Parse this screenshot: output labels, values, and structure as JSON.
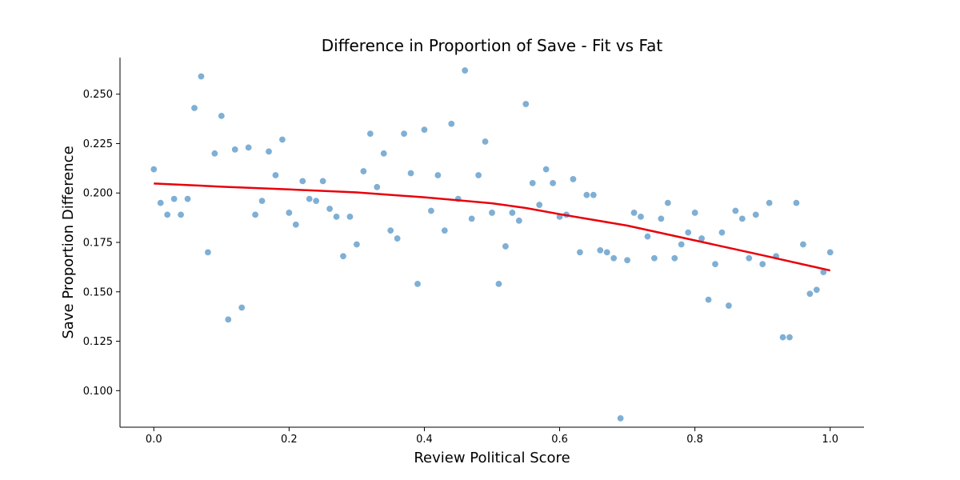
{
  "chart_data": {
    "type": "scatter",
    "title": "Difference in Proportion of Save - Fit vs Fat",
    "xlabel": "Review Political Score",
    "ylabel": "Save Proportion Difference",
    "xlim": [
      -0.05,
      1.05
    ],
    "ylim": [
      0.0815,
      0.2685
    ],
    "xticks": [
      0.0,
      0.2,
      0.4,
      0.6,
      0.8,
      1.0
    ],
    "xtick_labels": [
      "0.0",
      "0.2",
      "0.4",
      "0.6",
      "0.8",
      "1.0"
    ],
    "yticks": [
      0.1,
      0.125,
      0.15,
      0.175,
      0.2,
      0.225,
      0.25
    ],
    "ytick_labels": [
      "0.100",
      "0.125",
      "0.150",
      "0.175",
      "0.200",
      "0.225",
      "0.250"
    ],
    "grid": false,
    "spines": "left-bottom",
    "colors": {
      "points": "#7fafd4",
      "trend": "#e8000b"
    },
    "series": [
      {
        "type": "scatter",
        "x": [
          0.0,
          0.01,
          0.02,
          0.03,
          0.04,
          0.05,
          0.06,
          0.07,
          0.08,
          0.09,
          0.1,
          0.11,
          0.12,
          0.13,
          0.14,
          0.15,
          0.16,
          0.17,
          0.18,
          0.19,
          0.2,
          0.21,
          0.22,
          0.23,
          0.24,
          0.25,
          0.26,
          0.27,
          0.28,
          0.29,
          0.3,
          0.31,
          0.32,
          0.33,
          0.34,
          0.35,
          0.36,
          0.37,
          0.38,
          0.39,
          0.4,
          0.41,
          0.42,
          0.43,
          0.44,
          0.45,
          0.46,
          0.47,
          0.48,
          0.49,
          0.5,
          0.51,
          0.52,
          0.53,
          0.54,
          0.55,
          0.56,
          0.57,
          0.58,
          0.59,
          0.6,
          0.61,
          0.62,
          0.63,
          0.64,
          0.65,
          0.66,
          0.67,
          0.68,
          0.69,
          0.7,
          0.71,
          0.72,
          0.73,
          0.74,
          0.75,
          0.76,
          0.77,
          0.78,
          0.79,
          0.8,
          0.81,
          0.82,
          0.83,
          0.84,
          0.85,
          0.86,
          0.87,
          0.88,
          0.89,
          0.9,
          0.91,
          0.92,
          0.93,
          0.94,
          0.95,
          0.96,
          0.97,
          0.98,
          0.99,
          1.0
        ],
        "y": [
          0.212,
          0.195,
          0.189,
          0.197,
          0.189,
          0.197,
          0.243,
          0.259,
          0.17,
          0.22,
          0.239,
          0.136,
          0.222,
          0.142,
          0.223,
          0.189,
          0.196,
          0.221,
          0.209,
          0.227,
          0.19,
          0.184,
          0.206,
          0.197,
          0.196,
          0.206,
          0.192,
          0.188,
          0.168,
          0.188,
          0.174,
          0.211,
          0.23,
          0.203,
          0.22,
          0.181,
          0.177,
          0.23,
          0.21,
          0.154,
          0.232,
          0.191,
          0.209,
          0.181,
          0.235,
          0.197,
          0.262,
          0.187,
          0.209,
          0.226,
          0.19,
          0.154,
          0.173,
          0.19,
          0.186,
          0.245,
          0.205,
          0.194,
          0.212,
          0.205,
          0.188,
          0.189,
          0.207,
          0.17,
          0.199,
          0.199,
          0.171,
          0.17,
          0.167,
          0.086,
          0.166,
          0.19,
          0.188,
          0.178,
          0.167,
          0.187,
          0.195,
          0.167,
          0.174,
          0.18,
          0.19,
          0.177,
          0.146,
          0.164,
          0.18,
          0.143,
          0.191,
          0.187,
          0.167,
          0.189,
          0.164,
          0.195,
          0.168,
          0.127,
          0.127,
          0.195,
          0.174,
          0.149,
          0.151,
          0.16,
          0.17
        ]
      },
      {
        "type": "line",
        "x": [
          0.0,
          0.1,
          0.2,
          0.3,
          0.4,
          0.5,
          0.55,
          0.6,
          0.7,
          0.8,
          0.9,
          1.0
        ],
        "y": [
          0.2048,
          0.2032,
          0.2018,
          0.2003,
          0.1978,
          0.1948,
          0.1924,
          0.1893,
          0.1835,
          0.176,
          0.1685,
          0.1608
        ]
      }
    ]
  }
}
